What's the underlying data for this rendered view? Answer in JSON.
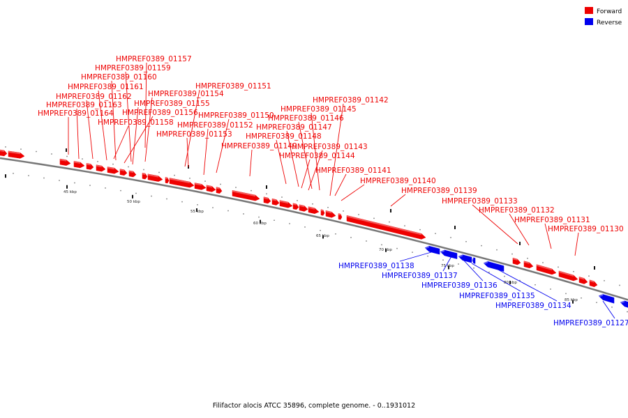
{
  "caption": "Filifactor alocis ATCC 35896, complete genome. - 0..1931012",
  "legend": [
    {
      "label": "Forward",
      "color": "#ee0000"
    },
    {
      "label": "Reverse",
      "color": "#0000ee"
    }
  ],
  "colors": {
    "forward": "#ee0000",
    "reverse": "#0000ee",
    "backbone": "#777777"
  },
  "scale_labels": [
    "45 kbp",
    "50 kbp",
    "55 kbp",
    "60 kbp",
    "65 kbp",
    "70 kbp",
    "75 kbp",
    "80 kbp",
    "85 kbp"
  ],
  "forward_genes": [
    "HMPREF0389_01157",
    "HMPREF0389_01159",
    "HMPREF0389_01160",
    "HMPREF0389_01161",
    "HMPREF0389_01162",
    "HMPREF0389_01163",
    "HMPREF0389_01164",
    "HMPREF0389_01154",
    "HMPREF0389_01155",
    "HMPREF0389_01156",
    "HMPREF0389_01158",
    "HMPREF0389_01151",
    "HMPREF0389_01150",
    "HMPREF0389_01152",
    "HMPREF0389_01153",
    "HMPREF0389_01149",
    "HMPREF0389_01142",
    "HMPREF0389_01145",
    "HMPREF0389_01146",
    "HMPREF0389_01147",
    "HMPREF0389_01148",
    "HMPREF0389_01143",
    "HMPREF0389_01144",
    "HMPREF0389_01141",
    "HMPREF0389_01140",
    "HMPREF0389_01139",
    "HMPREF0389_01133",
    "HMPREF0389_01132",
    "HMPREF0389_01131",
    "HMPREF0389_01130"
  ],
  "reverse_genes": [
    "HMPREF0389_01138",
    "HMPREF0389_01137",
    "HMPREF0389_01136",
    "HMPREF0389_01135",
    "HMPREF0389_01134",
    "HMPREF0389_01127"
  ]
}
